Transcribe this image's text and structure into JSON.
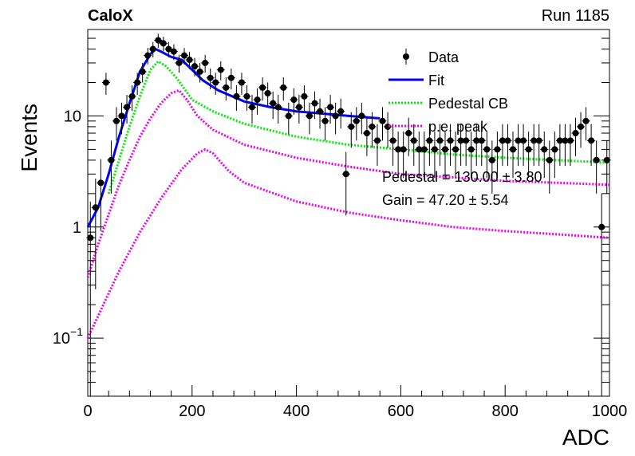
{
  "header": {
    "left_title": "CaloX",
    "right_title": "Run 1185"
  },
  "fit_results": {
    "pedestal": "Pedestal = 130.00 ± 3.80",
    "gain": "Gain = 47.20 ± 5.54"
  },
  "colors": {
    "data": "#000000",
    "fit": "#0000ff",
    "pedestal_cb": "#00ee00",
    "pe_peak": "#ee00ee"
  },
  "chart_data": {
    "type": "scatter",
    "xlabel": "ADC",
    "ylabel": "Events",
    "xlim": [
      0,
      1000
    ],
    "ylim": [
      0.03,
      60
    ],
    "yscale": "log",
    "x_ticks": [
      "0",
      "200",
      "400",
      "600",
      "800",
      "1000"
    ],
    "y_ticks": [
      {
        "value": 0.1,
        "base": "10",
        "exp": "−1"
      },
      {
        "value": 1,
        "label": "1"
      },
      {
        "value": 10,
        "label": "10"
      }
    ],
    "legend": {
      "position": "top-right",
      "entries": [
        {
          "label": "Data",
          "style": "marker"
        },
        {
          "label": "Fit",
          "style": "line"
        },
        {
          "label": "Pedestal CB",
          "style": "dotted"
        },
        {
          "label": "p.e. peak",
          "style": "dotted"
        }
      ]
    },
    "series": [
      {
        "name": "Data",
        "kind": "points",
        "x": [
          5,
          15,
          25,
          35,
          45,
          55,
          65,
          75,
          85,
          95,
          105,
          115,
          125,
          135,
          145,
          155,
          165,
          175,
          185,
          195,
          205,
          215,
          225,
          235,
          245,
          255,
          265,
          275,
          285,
          295,
          305,
          315,
          325,
          335,
          345,
          355,
          365,
          375,
          385,
          395,
          405,
          415,
          425,
          435,
          445,
          455,
          465,
          475,
          485,
          495,
          505,
          515,
          525,
          535,
          545,
          555,
          565,
          575,
          585,
          595,
          605,
          615,
          625,
          635,
          645,
          655,
          665,
          675,
          685,
          695,
          705,
          715,
          725,
          735,
          745,
          755,
          765,
          775,
          785,
          795,
          805,
          815,
          825,
          835,
          845,
          855,
          865,
          875,
          885,
          895,
          905,
          915,
          925,
          935,
          945,
          955,
          965,
          975,
          985,
          995
        ],
        "y": [
          0.8,
          1.5,
          2.5,
          20,
          4,
          9,
          10,
          12,
          15,
          20,
          25,
          35,
          40,
          48,
          45,
          40,
          38,
          30,
          35,
          32,
          28,
          25,
          30,
          22,
          20,
          26,
          18,
          22,
          15,
          20,
          15,
          12,
          14,
          18,
          16,
          13,
          12,
          18,
          10,
          14,
          12,
          15,
          10,
          13,
          11,
          9,
          12,
          10,
          11,
          3,
          8,
          9,
          10,
          7,
          8,
          6,
          9,
          8,
          6,
          5,
          5,
          7,
          6,
          5,
          5,
          6,
          5,
          6,
          5,
          6,
          5,
          6,
          6,
          5,
          6,
          6,
          5,
          4,
          5,
          6,
          6,
          5,
          6,
          6,
          5,
          6,
          6,
          5,
          4,
          5,
          6,
          6,
          6,
          7,
          8,
          9,
          6,
          4,
          1,
          4
        ]
      },
      {
        "name": "Fit",
        "kind": "line",
        "x": [
          0,
          20,
          40,
          60,
          80,
          100,
          120,
          130,
          140,
          160,
          180,
          200,
          220,
          250,
          300,
          350,
          400,
          450,
          500,
          560
        ],
        "y": [
          1.0,
          1.5,
          3,
          6.5,
          13,
          25,
          36,
          40,
          38,
          34,
          32,
          26,
          21,
          17,
          13.5,
          12,
          11,
          10.5,
          10,
          9.5
        ]
      },
      {
        "name": "Pedestal CB",
        "kind": "line",
        "x": [
          40,
          60,
          80,
          100,
          120,
          135,
          150,
          170,
          200,
          240,
          300,
          400,
          500,
          600,
          700,
          800,
          900,
          1000
        ],
        "y": [
          2,
          4,
          8,
          15,
          26,
          31,
          28,
          22,
          14,
          11,
          8.5,
          6.5,
          5.5,
          5,
          4.5,
          4.2,
          4,
          3.8
        ]
      },
      {
        "name": "p.e. peak",
        "kind": "line",
        "x": [
          0,
          20,
          40,
          60,
          80,
          100,
          120,
          140,
          160,
          175,
          190,
          210,
          240,
          300,
          400,
          500,
          600,
          700,
          800,
          900,
          1000
        ],
        "y": [
          0.35,
          0.7,
          1.3,
          2.4,
          4,
          6.5,
          9.5,
          13,
          16,
          17,
          14,
          10,
          7.5,
          5.5,
          4.2,
          3.5,
          3,
          2.8,
          2.6,
          2.5,
          2.4
        ]
      },
      {
        "name": "p.e. peak 2",
        "kind": "line",
        "x": [
          0,
          30,
          60,
          100,
          140,
          180,
          210,
          225,
          240,
          270,
          300,
          400,
          500,
          600,
          700,
          800,
          900,
          1000
        ],
        "y": [
          0.1,
          0.2,
          0.4,
          0.9,
          1.8,
          3.3,
          4.6,
          5,
          4.6,
          3.2,
          2.5,
          1.7,
          1.35,
          1.15,
          1.0,
          0.92,
          0.86,
          0.8
        ]
      }
    ]
  }
}
